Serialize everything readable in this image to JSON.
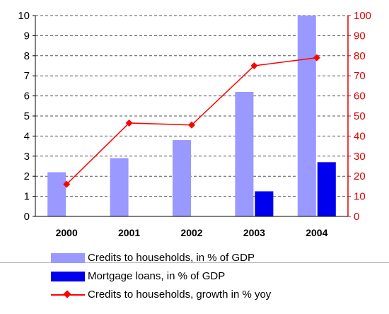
{
  "chart_data": {
    "type": "bar+line",
    "categories": [
      "2000",
      "2001",
      "2002",
      "2003",
      "2004"
    ],
    "series": [
      {
        "name": "Credits to households, in % of GDP",
        "type": "bar",
        "axis": "left",
        "color": "#9999ff",
        "values": [
          2.2,
          2.9,
          3.8,
          6.2,
          10.0
        ]
      },
      {
        "name": "Mortgage loans, in % of GDP",
        "type": "bar",
        "axis": "left",
        "color": "#0000ee",
        "values": [
          0,
          0,
          0,
          1.25,
          2.7
        ]
      },
      {
        "name": "Credits to households, growth in % yoy",
        "type": "line",
        "axis": "right",
        "color": "#ff0000",
        "values": [
          16,
          46.5,
          45.5,
          75,
          79
        ]
      }
    ],
    "left_axis": {
      "ylim": [
        0,
        10
      ],
      "ticks": [
        "0",
        "1",
        "2",
        "3",
        "4",
        "5",
        "6",
        "7",
        "8",
        "9",
        "10"
      ]
    },
    "right_axis": {
      "ylim": [
        0,
        100
      ],
      "ticks": [
        "0",
        "10",
        "20",
        "30",
        "40",
        "50",
        "60",
        "70",
        "80",
        "90",
        "100"
      ],
      "color": "#e00000"
    },
    "grid": "horizontal-dashed",
    "legend_position": "bottom"
  }
}
